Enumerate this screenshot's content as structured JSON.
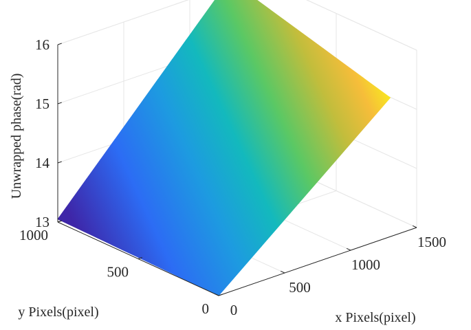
{
  "chart_data": {
    "type": "surface",
    "title": "",
    "xlabel": "x Pixels(pixel)",
    "ylabel": "y Pixels(pixel)",
    "zlabel": "Unwrapped phase(rad)",
    "xlim": [
      0,
      1500
    ],
    "ylim": [
      0,
      1000
    ],
    "zlim": [
      13,
      16
    ],
    "x_ticks": [
      0,
      500,
      1000,
      1500
    ],
    "y_ticks": [
      0,
      500,
      1000
    ],
    "z_ticks": [
      13,
      14,
      15,
      16
    ],
    "x_tick_labels": [
      "0",
      "500",
      "1000",
      "1500"
    ],
    "y_tick_labels": [
      "0",
      "500",
      "1000"
    ],
    "z_tick_labels": [
      "13",
      "14",
      "15",
      "16"
    ],
    "grid": true,
    "colormap": "parula",
    "surface": {
      "x_range": [
        0,
        1300
      ],
      "y_range": [
        0,
        1000
      ],
      "corners": [
        {
          "x": 0,
          "y": 1000,
          "z": 13.05
        },
        {
          "x": 1300,
          "y": 1000,
          "z": 16.1
        },
        {
          "x": 1300,
          "y": 0,
          "z": 15.35
        },
        {
          "x": 0,
          "y": 0,
          "z": 13.0
        }
      ]
    }
  }
}
